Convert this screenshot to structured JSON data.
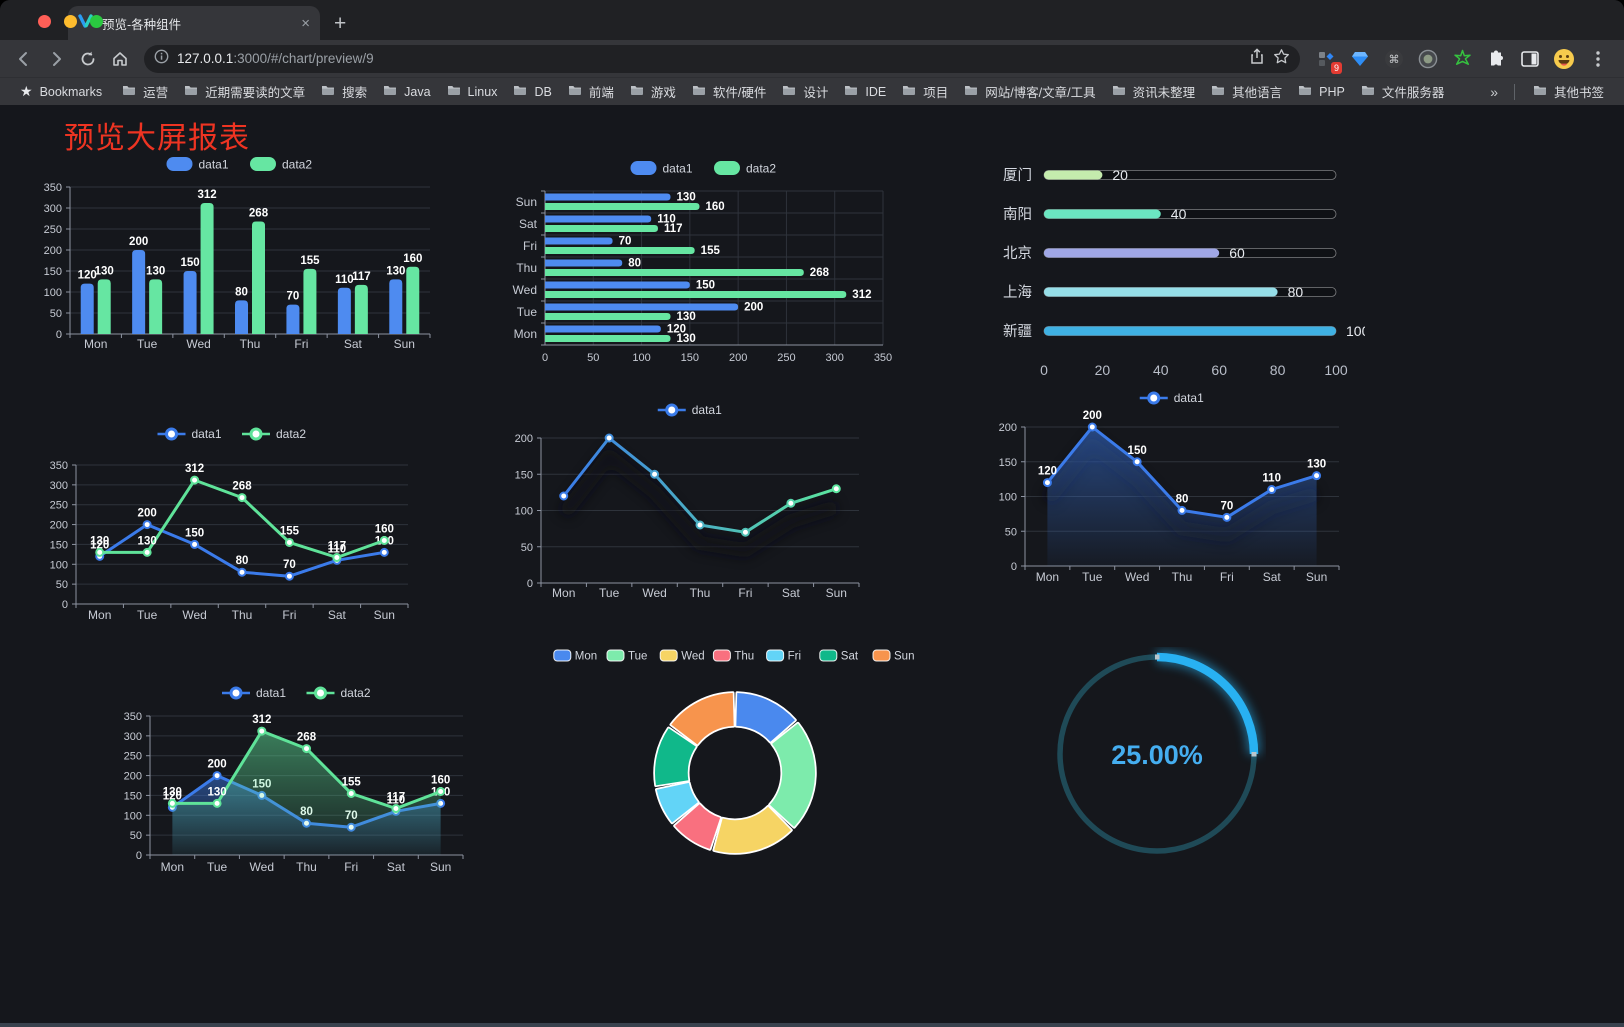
{
  "browser": {
    "tab_title": "预览-各种组件",
    "url_host": "127.0.0.1",
    "url_rest": ":3000/#/chart/preview/9",
    "extension_badge": "9",
    "bookmarks_label": "Bookmarks",
    "bookmarks": [
      "运营",
      "近期需要读的文章",
      "搜索",
      "Java",
      "Linux",
      "DB",
      "前端",
      "游戏",
      "软件/硬件",
      "设计",
      "IDE",
      "项目",
      "网站/博客/文章/工具",
      "资讯未整理",
      "其他语言",
      "PHP",
      "文件服务器"
    ],
    "bookmarks_overflow": "»",
    "other_bookmarks": "其他书签"
  },
  "page": {
    "title": "预览大屏报表",
    "title_color": "#ee3422"
  },
  "chart_data": [
    {
      "id": "bar-vertical",
      "type": "bar",
      "categories": [
        "Mon",
        "Tue",
        "Wed",
        "Thu",
        "Fri",
        "Sat",
        "Sun"
      ],
      "series": [
        {
          "name": "data1",
          "color": "#4e8bf0",
          "values": [
            120,
            200,
            150,
            80,
            70,
            110,
            130
          ]
        },
        {
          "name": "data2",
          "color": "#66e6a2",
          "values": [
            130,
            130,
            312,
            268,
            155,
            117,
            160
          ]
        }
      ],
      "ylim": [
        0,
        350
      ],
      "ytick_step": 50,
      "legend_position": "top",
      "grid": true
    },
    {
      "id": "bar-horizontal",
      "type": "bar",
      "orientation": "horizontal",
      "categories_top_to_bottom": [
        "Sun",
        "Sat",
        "Fri",
        "Thu",
        "Wed",
        "Tue",
        "Mon"
      ],
      "series": [
        {
          "name": "data1",
          "color": "#4e8bf0",
          "values": [
            130,
            110,
            70,
            80,
            150,
            200,
            120
          ]
        },
        {
          "name": "data2",
          "color": "#66e6a2",
          "values": [
            160,
            117,
            155,
            268,
            312,
            130,
            130
          ]
        }
      ],
      "xlim": [
        0,
        350
      ],
      "xtick_step": 50,
      "legend_position": "top",
      "grid": true
    },
    {
      "id": "city-progress",
      "type": "bar",
      "orientation": "horizontal",
      "rows": [
        {
          "label": "厦门",
          "value": 20,
          "color": "#c4ebad"
        },
        {
          "label": "南阳",
          "value": 40,
          "color": "#6be6c1"
        },
        {
          "label": "北京",
          "value": 60,
          "color": "#a0a7e6"
        },
        {
          "label": "上海",
          "value": 80,
          "color": "#96dee8"
        },
        {
          "label": "新疆",
          "value": 100,
          "color": "#3fb1e3"
        }
      ],
      "xlim": [
        0,
        100
      ],
      "xticks": [
        0,
        20,
        40,
        60,
        80,
        100
      ]
    },
    {
      "id": "line-two-series",
      "type": "line",
      "categories": [
        "Mon",
        "Tue",
        "Wed",
        "Thu",
        "Fri",
        "Sat",
        "Sun"
      ],
      "series": [
        {
          "name": "data1",
          "color": "#3b7bea",
          "values": [
            120,
            200,
            150,
            80,
            70,
            110,
            130
          ]
        },
        {
          "name": "data2",
          "color": "#5fe399",
          "values": [
            130,
            130,
            312,
            268,
            155,
            117,
            160
          ]
        }
      ],
      "ylim": [
        0,
        350
      ],
      "ytick_step": 50,
      "point_labels": true,
      "legend_position": "top"
    },
    {
      "id": "line-gradient",
      "type": "line",
      "categories": [
        "Mon",
        "Tue",
        "Wed",
        "Thu",
        "Fri",
        "Sat",
        "Sun"
      ],
      "series": [
        {
          "name": "data1",
          "color": "#3b7bea",
          "gradient": [
            "#3a7be8",
            "#5ce69e"
          ],
          "values": [
            120,
            200,
            150,
            80,
            70,
            110,
            130
          ]
        }
      ],
      "ylim": [
        0,
        200
      ],
      "ytick_step": 50,
      "point_labels": false,
      "shadow": true,
      "legend_position": "top"
    },
    {
      "id": "area-blue",
      "type": "area",
      "categories": [
        "Mon",
        "Tue",
        "Wed",
        "Thu",
        "Fri",
        "Sat",
        "Sun"
      ],
      "series": [
        {
          "name": "data1",
          "color": "#3b7bea",
          "area": true,
          "values": [
            120,
            200,
            150,
            80,
            70,
            110,
            130
          ]
        }
      ],
      "ylim": [
        0,
        200
      ],
      "ytick_step": 50,
      "point_labels": true,
      "shadow": true,
      "legend_position": "top"
    },
    {
      "id": "area-two-series",
      "type": "area",
      "categories": [
        "Mon",
        "Tue",
        "Wed",
        "Thu",
        "Fri",
        "Sat",
        "Sun"
      ],
      "series": [
        {
          "name": "data1",
          "color": "#3b7bea",
          "area": true,
          "values": [
            120,
            200,
            150,
            80,
            70,
            110,
            130
          ]
        },
        {
          "name": "data2",
          "color": "#5fe399",
          "area": true,
          "values": [
            130,
            130,
            312,
            268,
            155,
            117,
            160
          ]
        }
      ],
      "ylim": [
        0,
        350
      ],
      "ytick_step": 50,
      "point_labels": true,
      "legend_position": "top"
    },
    {
      "id": "donut",
      "type": "pie",
      "labels": [
        "Mon",
        "Tue",
        "Wed",
        "Thu",
        "Fri",
        "Sat",
        "Sun"
      ],
      "values": [
        120,
        200,
        150,
        80,
        70,
        110,
        130
      ],
      "colors": [
        "#4a89ee",
        "#7debac",
        "#f6d464",
        "#f9707f",
        "#62d4f7",
        "#10b88a",
        "#f7944d"
      ],
      "inner_radius_ratio": 0.59,
      "legend_position": "top"
    },
    {
      "id": "progress-gauge",
      "type": "gauge",
      "percent": 25,
      "value_text": "25.00%",
      "color": "#28b1f2",
      "track_color": "#1f4a57",
      "text_color": "#45aef0"
    }
  ]
}
